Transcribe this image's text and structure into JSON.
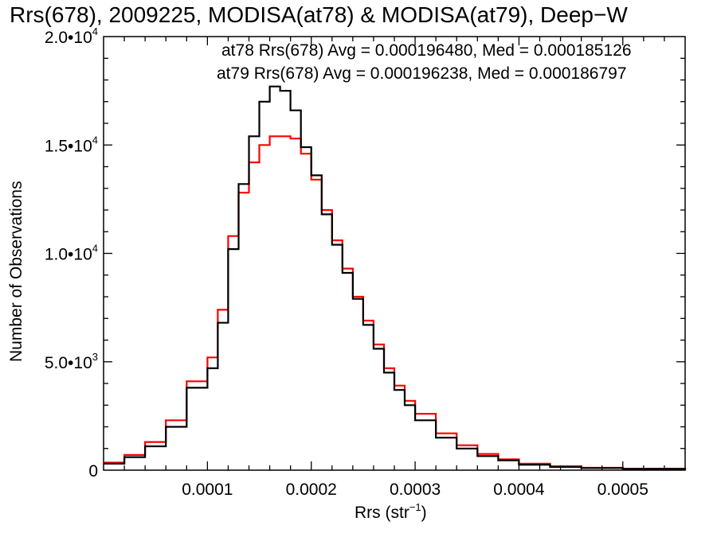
{
  "chart_data": {
    "type": "line",
    "title": "Rrs(678), 2009225, MODISA(at78) & MODISA(at79), Deep−W",
    "xlabel": {
      "text": "Rrs (str",
      "sup": "−1",
      "close": ")"
    },
    "ylabel": "Number of Observations",
    "xlim": [
      0.0,
      0.00056
    ],
    "ylim": [
      0,
      20000
    ],
    "xticks": [
      {
        "value": 0.0001,
        "label": "0.0001"
      },
      {
        "value": 0.0002,
        "label": "0.0002"
      },
      {
        "value": 0.0003,
        "label": "0.0003"
      },
      {
        "value": 0.0004,
        "label": "0.0004"
      },
      {
        "value": 0.0005,
        "label": "0.0005"
      }
    ],
    "yticks": [
      {
        "value": 0,
        "label": "0",
        "exp": ""
      },
      {
        "value": 5000,
        "label": "5.0•10",
        "exp": "3"
      },
      {
        "value": 10000,
        "label": "1.0•10",
        "exp": "4"
      },
      {
        "value": 15000,
        "label": "1.5•10",
        "exp": "4"
      },
      {
        "value": 20000,
        "label": "2.0•10",
        "exp": "4"
      }
    ],
    "grid": false,
    "series": [
      {
        "name": "at78",
        "color": "#000000",
        "stat_label": "at78 Rrs(678) Avg = 0.000196480, Med = 0.000185126",
        "x": [
          0.0,
          2e-05,
          4e-05,
          6e-05,
          8e-05,
          0.0001,
          0.00011,
          0.00012,
          0.00013,
          0.00014,
          0.00015,
          0.00016,
          0.00017,
          0.00018,
          0.00019,
          0.0002,
          0.00021,
          0.00022,
          0.00023,
          0.00024,
          0.00025,
          0.00026,
          0.00027,
          0.00028,
          0.00029,
          0.0003,
          0.00032,
          0.00034,
          0.00036,
          0.00038,
          0.0004,
          0.00043,
          0.00046,
          0.0005,
          0.00056
        ],
        "y": [
          300,
          600,
          1100,
          2000,
          3800,
          4700,
          6800,
          10200,
          13200,
          15400,
          17000,
          17700,
          17500,
          16600,
          14900,
          13600,
          11800,
          10400,
          9100,
          7900,
          6700,
          5600,
          4500,
          3700,
          3000,
          2300,
          1500,
          1000,
          650,
          450,
          250,
          150,
          100,
          60,
          20
        ]
      },
      {
        "name": "at79",
        "color": "#ff0000",
        "stat_label": "at79 Rrs(678) Avg = 0.000196238, Med = 0.000186797",
        "x": [
          0.0,
          2e-05,
          4e-05,
          6e-05,
          8e-05,
          0.0001,
          0.00011,
          0.00012,
          0.00013,
          0.00014,
          0.00015,
          0.00016,
          0.00017,
          0.00018,
          0.00019,
          0.0002,
          0.00021,
          0.00022,
          0.00023,
          0.00024,
          0.00025,
          0.00026,
          0.00027,
          0.00028,
          0.00029,
          0.0003,
          0.00032,
          0.00034,
          0.00036,
          0.00038,
          0.0004,
          0.00043,
          0.00046,
          0.0005,
          0.00056
        ],
        "y": [
          350,
          700,
          1300,
          2300,
          4100,
          5200,
          7400,
          10800,
          12800,
          14200,
          15000,
          15400,
          15400,
          15300,
          14600,
          13400,
          12000,
          10600,
          9300,
          8000,
          6900,
          5800,
          4700,
          3900,
          3200,
          2600,
          1700,
          1150,
          750,
          500,
          300,
          180,
          110,
          70,
          25
        ]
      }
    ]
  }
}
